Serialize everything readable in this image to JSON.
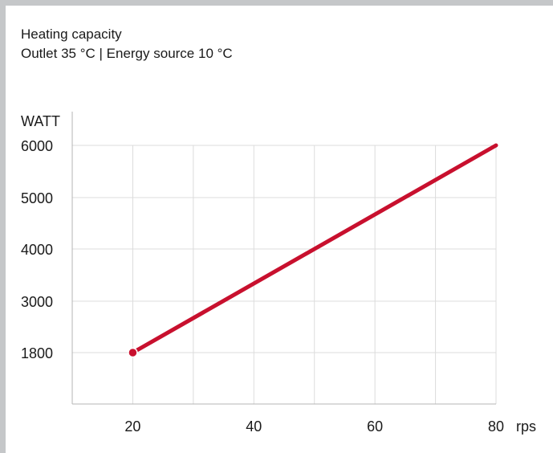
{
  "chart_data": {
    "type": "line",
    "title": "Heating capacity",
    "subtitle": "Outlet 35 °C | Energy source 10 °C",
    "ylabel": "WATT",
    "xlabel": "rps",
    "x_ticks": [
      20,
      40,
      60,
      80
    ],
    "y_ticks": [
      1800,
      3000,
      4000,
      5000,
      6000
    ],
    "grid": true,
    "colors": {
      "line": "#c8102e",
      "grid": "#dcdcdc",
      "axis": "#b5b5b5",
      "frame": "#c5c7c9"
    },
    "series": [
      {
        "x": [
          20,
          80
        ],
        "y": [
          1800,
          6000
        ]
      }
    ]
  }
}
